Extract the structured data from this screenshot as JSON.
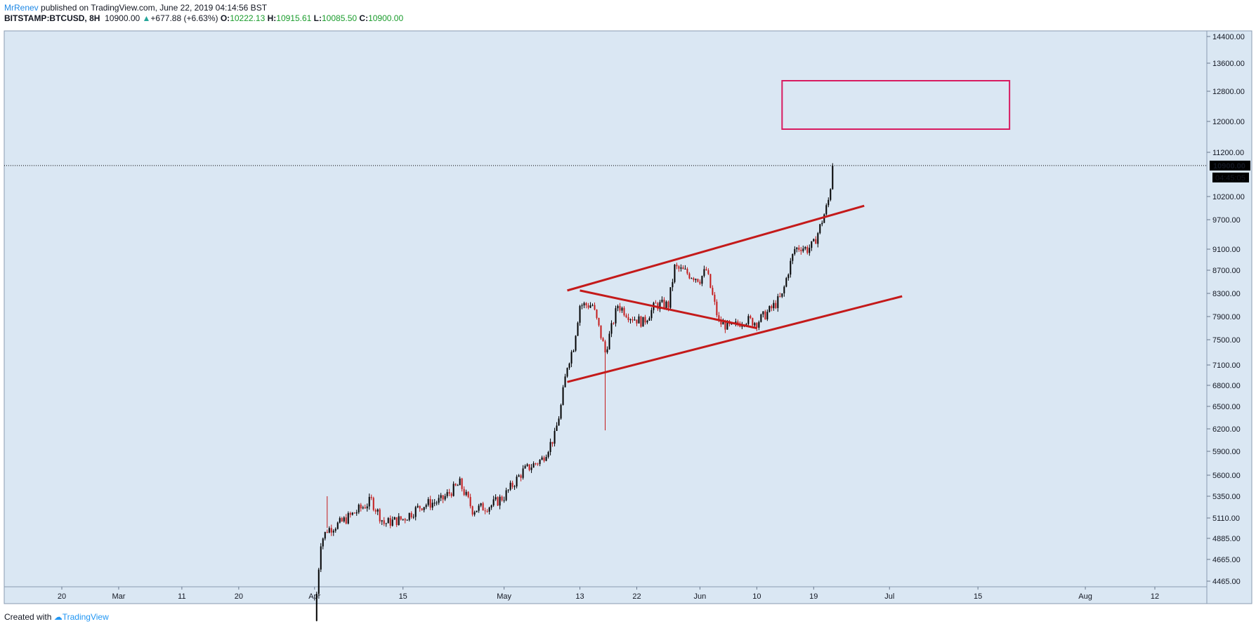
{
  "header": {
    "author": "MrRenev",
    "published": " published on TradingView.com, June 22, 2019 04:14:56 BST",
    "symbol": "BITSTAMP:BTCUSD, 8H",
    "price": "10900.00",
    "change": "+677.88 (+6.63%)",
    "o_label": "O:",
    "o": "10222.13",
    "h_label": "H:",
    "h": "10915.61",
    "l_label": "L:",
    "l": "10085.50",
    "c_label": "C:",
    "c": "10900.00"
  },
  "footer": {
    "created": "Created with",
    "brand": "TradingView"
  },
  "colors": {
    "background": "#dae7f3",
    "up": "#000000",
    "down": "#c41a1a",
    "trendline": "#c41a1a",
    "target_box": "#d81b60",
    "price_label_bg": "#000000"
  },
  "chart_data": {
    "type": "candlestick",
    "timeframe": "8H",
    "y_ticks": [
      "14400.00",
      "13600.00",
      "12800.00",
      "12000.00",
      "11200.00",
      "10200.00",
      "9700.00",
      "9100.00",
      "8700.00",
      "8300.00",
      "7900.00",
      "7500.00",
      "7100.00",
      "6800.00",
      "6500.00",
      "6200.00",
      "5900.00",
      "5600.00",
      "5350.00",
      "5110.00",
      "4885.00",
      "4665.00",
      "4465.00"
    ],
    "x_ticks": [
      "20",
      "Mar",
      "11",
      "20",
      "Apr",
      "15",
      "May",
      "13",
      "22",
      "Jun",
      "10",
      "19",
      "Jul",
      "15",
      "Aug",
      "12"
    ],
    "x_tick_dates": [
      "2019-02-20",
      "2019-03-01",
      "2019-03-11",
      "2019-03-20",
      "2019-04-01",
      "2019-04-15",
      "2019-05-01",
      "2019-05-13",
      "2019-05-22",
      "2019-06-01",
      "2019-06-10",
      "2019-06-19",
      "2019-07-01",
      "2019-07-15",
      "2019-08-01",
      "2019-08-12"
    ],
    "ylim": [
      4400,
      14600
    ],
    "last_price": "10900.00",
    "countdown": "04:45:05",
    "price_path": [
      [
        "2019-04-01",
        4100
      ],
      [
        "2019-04-02",
        4850
      ],
      [
        "2019-04-03",
        4980
      ],
      [
        "2019-04-05",
        5050
      ],
      [
        "2019-04-08",
        5200
      ],
      [
        "2019-04-10",
        5300
      ],
      [
        "2019-04-12",
        5050
      ],
      [
        "2019-04-15",
        5100
      ],
      [
        "2019-04-18",
        5250
      ],
      [
        "2019-04-21",
        5300
      ],
      [
        "2019-04-24",
        5500
      ],
      [
        "2019-04-26",
        5200
      ],
      [
        "2019-04-29",
        5250
      ],
      [
        "2019-05-01",
        5350
      ],
      [
        "2019-05-04",
        5650
      ],
      [
        "2019-05-07",
        5800
      ],
      [
        "2019-05-09",
        6100
      ],
      [
        "2019-05-10",
        6500
      ],
      [
        "2019-05-11",
        7100
      ],
      [
        "2019-05-12",
        7400
      ],
      [
        "2019-05-13",
        8100
      ],
      [
        "2019-05-15",
        8100
      ],
      [
        "2019-05-17",
        7300
      ],
      [
        "2019-05-19",
        8100
      ],
      [
        "2019-05-21",
        7900
      ],
      [
        "2019-05-23",
        7800
      ],
      [
        "2019-05-25",
        8100
      ],
      [
        "2019-05-27",
        8100
      ],
      [
        "2019-05-28",
        8750
      ],
      [
        "2019-05-30",
        8650
      ],
      [
        "2019-06-01",
        8550
      ],
      [
        "2019-06-02",
        8700
      ],
      [
        "2019-06-04",
        7800
      ],
      [
        "2019-06-06",
        7700
      ],
      [
        "2019-06-08",
        7850
      ],
      [
        "2019-06-10",
        7800
      ],
      [
        "2019-06-12",
        8000
      ],
      [
        "2019-06-14",
        8250
      ],
      [
        "2019-06-15",
        8700
      ],
      [
        "2019-06-16",
        9100
      ],
      [
        "2019-06-17",
        9150
      ],
      [
        "2019-06-18",
        9100
      ],
      [
        "2019-06-19",
        9200
      ],
      [
        "2019-06-20",
        9550
      ],
      [
        "2019-06-21",
        9950
      ],
      [
        "2019-06-21.5",
        10200
      ],
      [
        "2019-06-22",
        10900
      ]
    ],
    "annotations": {
      "channel_upper": [
        [
          "2019-05-11",
          8350
        ],
        [
          "2019-06-27",
          10000
        ]
      ],
      "channel_lower": [
        [
          "2019-05-11",
          6850
        ],
        [
          "2019-07-03",
          8250
        ]
      ],
      "triangle_line": [
        [
          "2019-05-13",
          8350
        ],
        [
          "2019-06-10",
          7700
        ]
      ],
      "target_box": {
        "from": "2019-06-14",
        "to": "2019-07-20",
        "low": 11800,
        "high": 13100
      }
    }
  }
}
